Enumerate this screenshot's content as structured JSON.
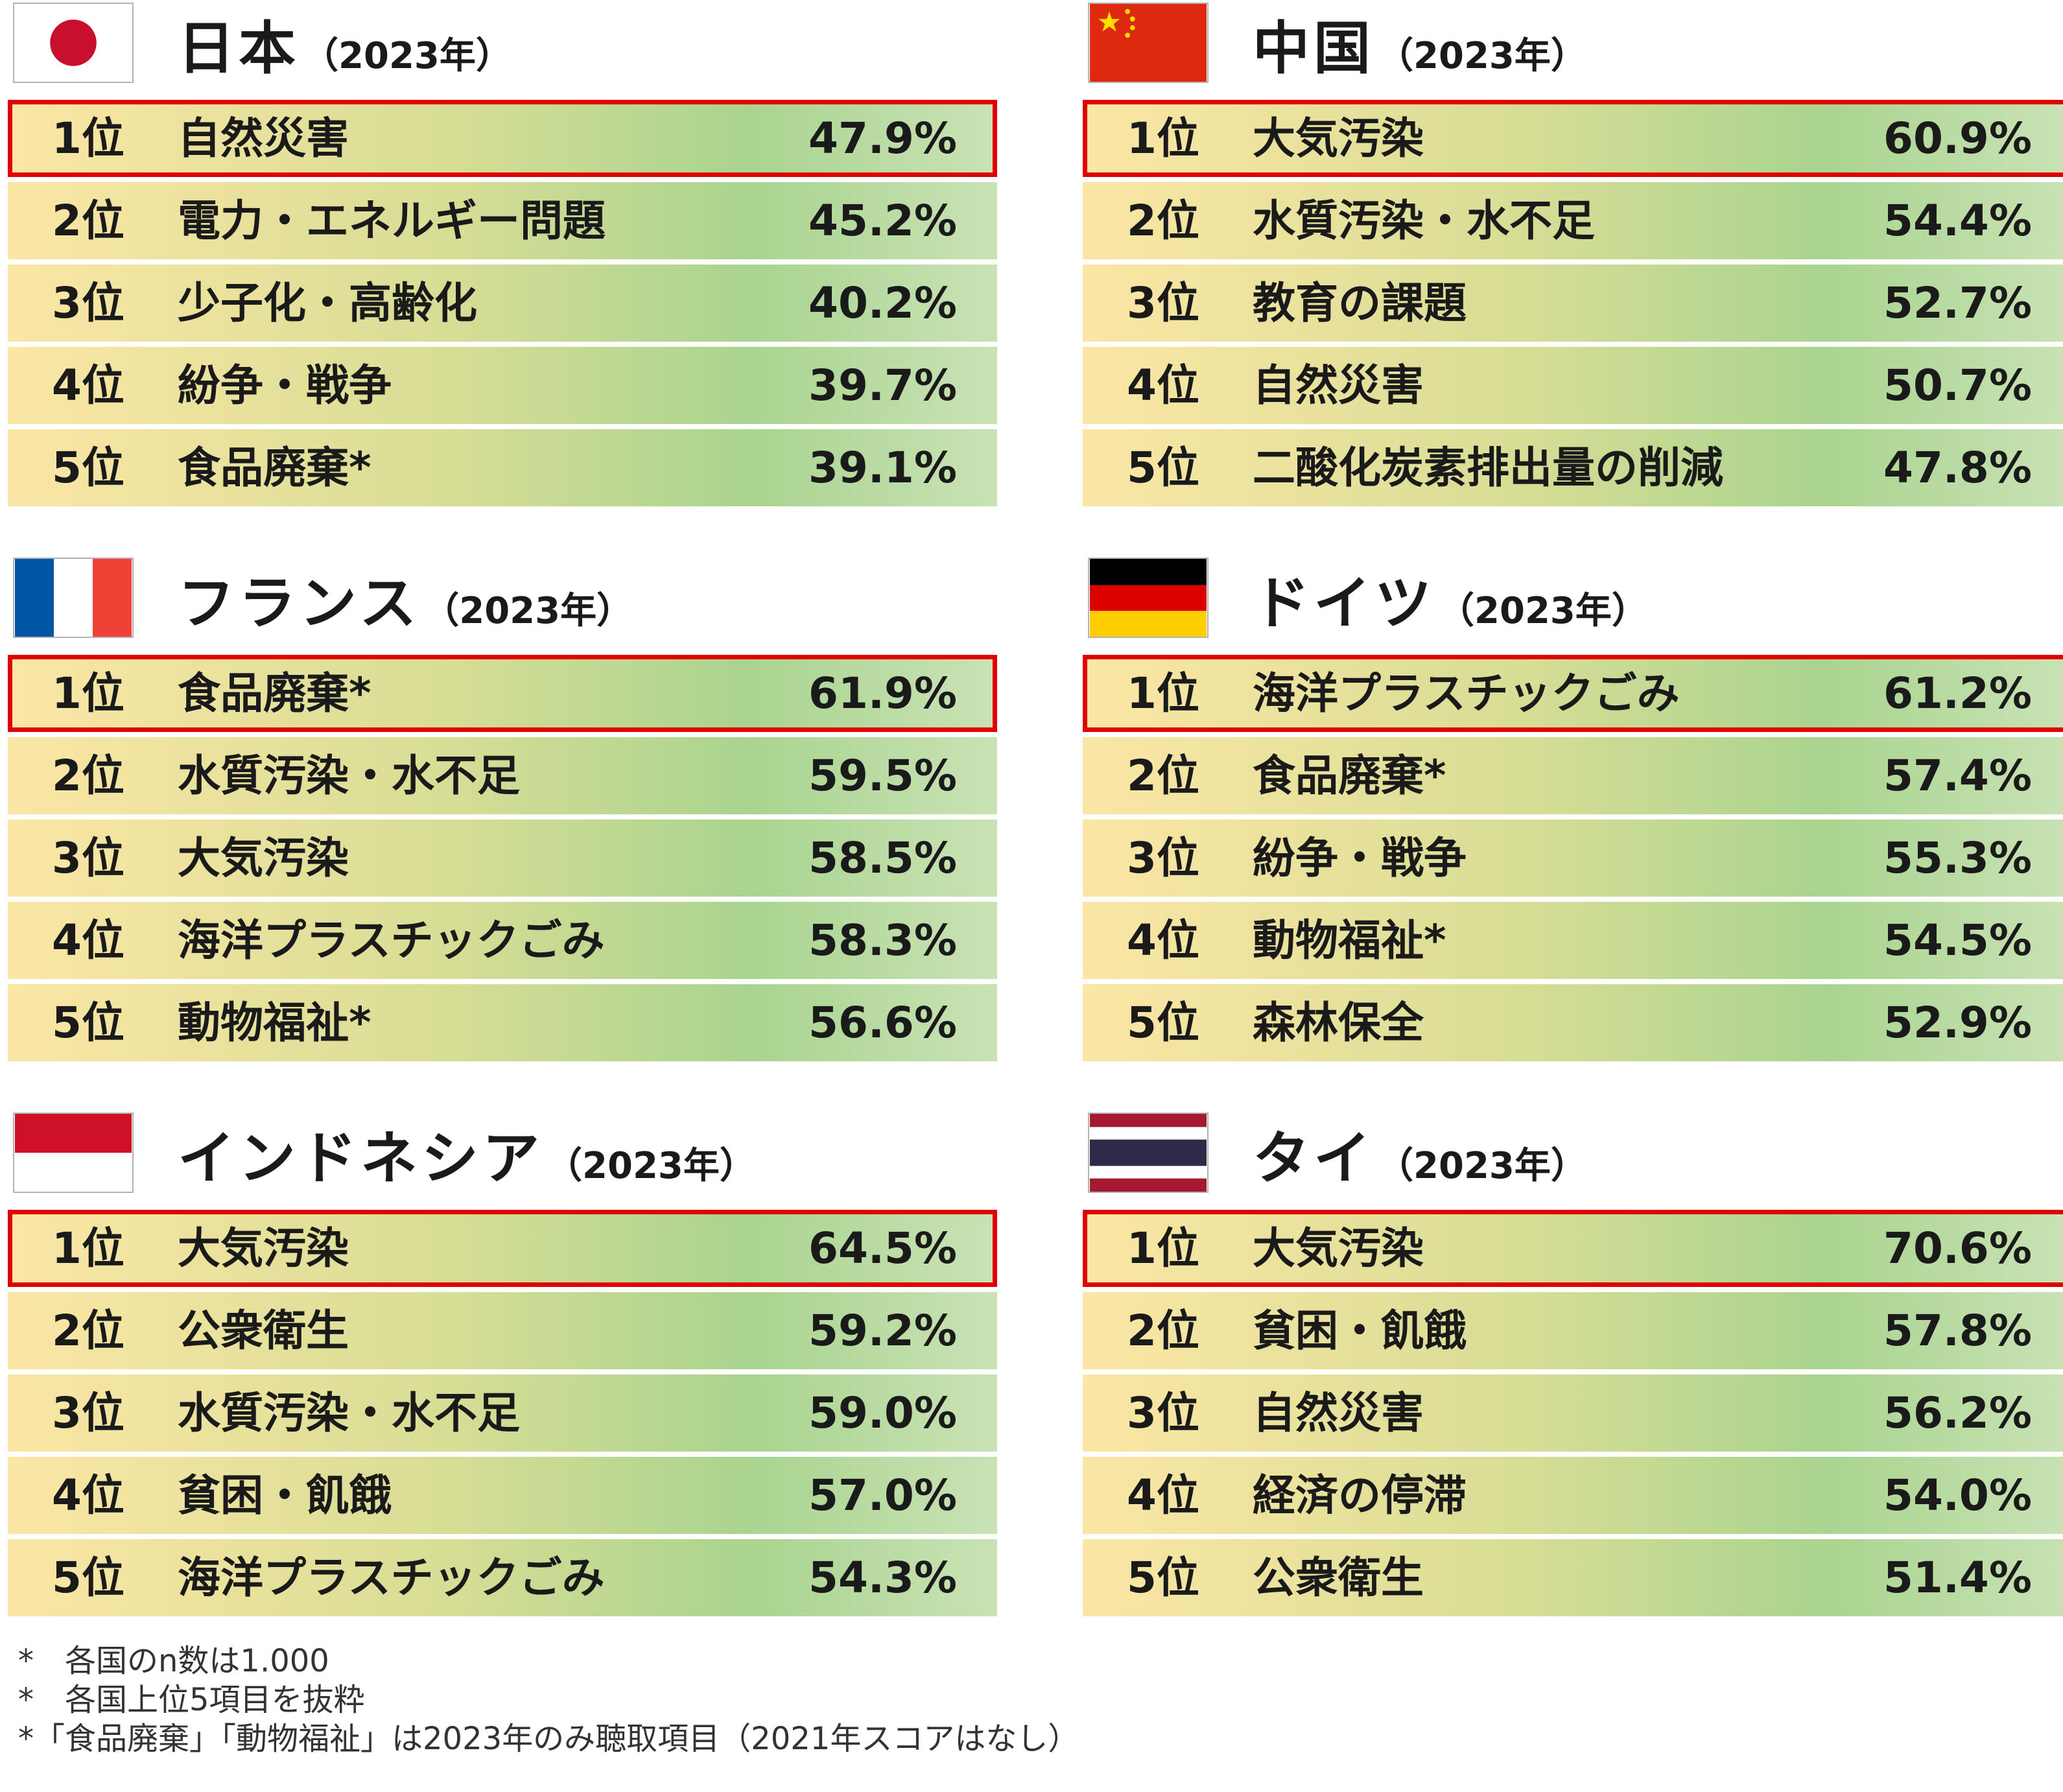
{
  "panels": [
    {
      "country": "日本",
      "year": "（2023年）",
      "flag": "japan",
      "rows": [
        {
          "rank": "1位",
          "label": "自然災害",
          "pct": "47.9%"
        },
        {
          "rank": "2位",
          "label": "電力・エネルギー問題",
          "pct": "45.2%"
        },
        {
          "rank": "3位",
          "label": "少子化・高齢化",
          "pct": "40.2%"
        },
        {
          "rank": "4位",
          "label": "紛争・戦争",
          "pct": "39.7%"
        },
        {
          "rank": "5位",
          "label": "食品廃棄*",
          "pct": "39.1%"
        }
      ]
    },
    {
      "country": "中国",
      "year": "（2023年）",
      "flag": "china",
      "rows": [
        {
          "rank": "1位",
          "label": "大気汚染",
          "pct": "60.9%"
        },
        {
          "rank": "2位",
          "label": "水質汚染・水不足",
          "pct": "54.4%"
        },
        {
          "rank": "3位",
          "label": "教育の課題",
          "pct": "52.7%"
        },
        {
          "rank": "4位",
          "label": "自然災害",
          "pct": "50.7%"
        },
        {
          "rank": "5位",
          "label": "二酸化炭素排出量の削減",
          "pct": "47.8%"
        }
      ]
    },
    {
      "country": "フランス",
      "year": "（2023年）",
      "flag": "france",
      "rows": [
        {
          "rank": "1位",
          "label": "食品廃棄*",
          "pct": "61.9%"
        },
        {
          "rank": "2位",
          "label": "水質汚染・水不足",
          "pct": "59.5%"
        },
        {
          "rank": "3位",
          "label": "大気汚染",
          "pct": "58.5%"
        },
        {
          "rank": "4位",
          "label": "海洋プラスチックごみ",
          "pct": "58.3%"
        },
        {
          "rank": "5位",
          "label": "動物福祉*",
          "pct": "56.6%"
        }
      ]
    },
    {
      "country": "ドイツ",
      "year": "（2023年）",
      "flag": "germany",
      "rows": [
        {
          "rank": "1位",
          "label": "海洋プラスチックごみ",
          "pct": "61.2%"
        },
        {
          "rank": "2位",
          "label": "食品廃棄*",
          "pct": "57.4%"
        },
        {
          "rank": "3位",
          "label": "紛争・戦争",
          "pct": "55.3%"
        },
        {
          "rank": "4位",
          "label": "動物福祉*",
          "pct": "54.5%"
        },
        {
          "rank": "5位",
          "label": "森林保全",
          "pct": "52.9%"
        }
      ]
    },
    {
      "country": "インドネシア",
      "year": "（2023年）",
      "flag": "indonesia",
      "rows": [
        {
          "rank": "1位",
          "label": "大気汚染",
          "pct": "64.5%"
        },
        {
          "rank": "2位",
          "label": "公衆衛生",
          "pct": "59.2%"
        },
        {
          "rank": "3位",
          "label": "水質汚染・水不足",
          "pct": "59.0%"
        },
        {
          "rank": "4位",
          "label": "貧困・飢餓",
          "pct": "57.0%"
        },
        {
          "rank": "5位",
          "label": "海洋プラスチックごみ",
          "pct": "54.3%"
        }
      ]
    },
    {
      "country": "タイ",
      "year": "（2023年）",
      "flag": "thailand",
      "rows": [
        {
          "rank": "1位",
          "label": "大気汚染",
          "pct": "70.6%"
        },
        {
          "rank": "2位",
          "label": "貧困・飢餓",
          "pct": "57.8%"
        },
        {
          "rank": "3位",
          "label": "自然災害",
          "pct": "56.2%"
        },
        {
          "rank": "4位",
          "label": "経済の停滞",
          "pct": "54.0%"
        },
        {
          "rank": "5位",
          "label": "公衆衛生",
          "pct": "51.4%"
        }
      ]
    }
  ],
  "footnotes": [
    "*　各国のn数は1.000",
    "*　各国上位5項目を抜粋",
    "*「食品廃棄」「動物福祉」は2023年のみ聴取項目（2021年スコアはなし）"
  ],
  "colors": {
    "highlight_border": "#e10000",
    "row_gradient": [
      "#fbe6a5",
      "#d7dd95",
      "#a9d48f",
      "#c9e2b5"
    ]
  }
}
